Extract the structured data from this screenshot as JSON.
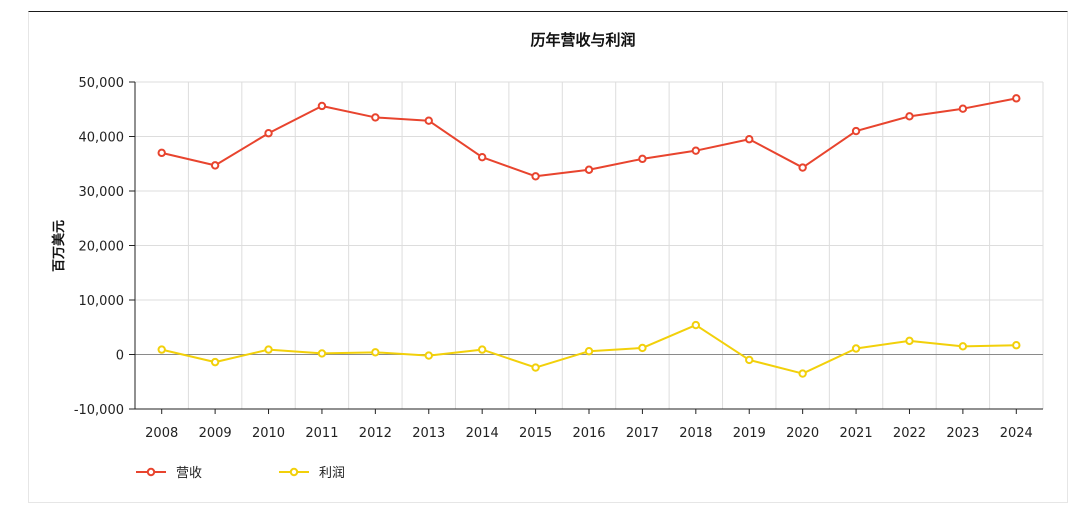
{
  "chart_data": {
    "type": "line",
    "title": "历年营收与利润",
    "xlabel": "",
    "ylabel": "百万美元",
    "x": [
      "2008",
      "2009",
      "2010",
      "2011",
      "2012",
      "2013",
      "2014",
      "2015",
      "2016",
      "2017",
      "2018",
      "2019",
      "2020",
      "2021",
      "2022",
      "2023",
      "2024"
    ],
    "ylim": [
      -10000,
      50000
    ],
    "yticks": [
      -10000,
      0,
      10000,
      20000,
      30000,
      40000,
      50000
    ],
    "ytick_labels": [
      "-10,000",
      "0",
      "10,000",
      "20,000",
      "30,000",
      "40,000",
      "50,000"
    ],
    "grid": true,
    "legend_position": "bottom-left",
    "series": [
      {
        "name": "营收",
        "color": "#e8442e",
        "values": [
          37000,
          34700,
          40600,
          45600,
          43500,
          42900,
          36200,
          32700,
          33900,
          35900,
          37400,
          39500,
          34300,
          41000,
          43700,
          45100,
          47000
        ]
      },
      {
        "name": "利润",
        "color": "#f2d00a",
        "values": [
          900,
          -1400,
          900,
          200,
          400,
          -200,
          900,
          -2400,
          600,
          1200,
          5400,
          -1000,
          -3500,
          1100,
          2500,
          1500,
          1700
        ]
      }
    ]
  }
}
